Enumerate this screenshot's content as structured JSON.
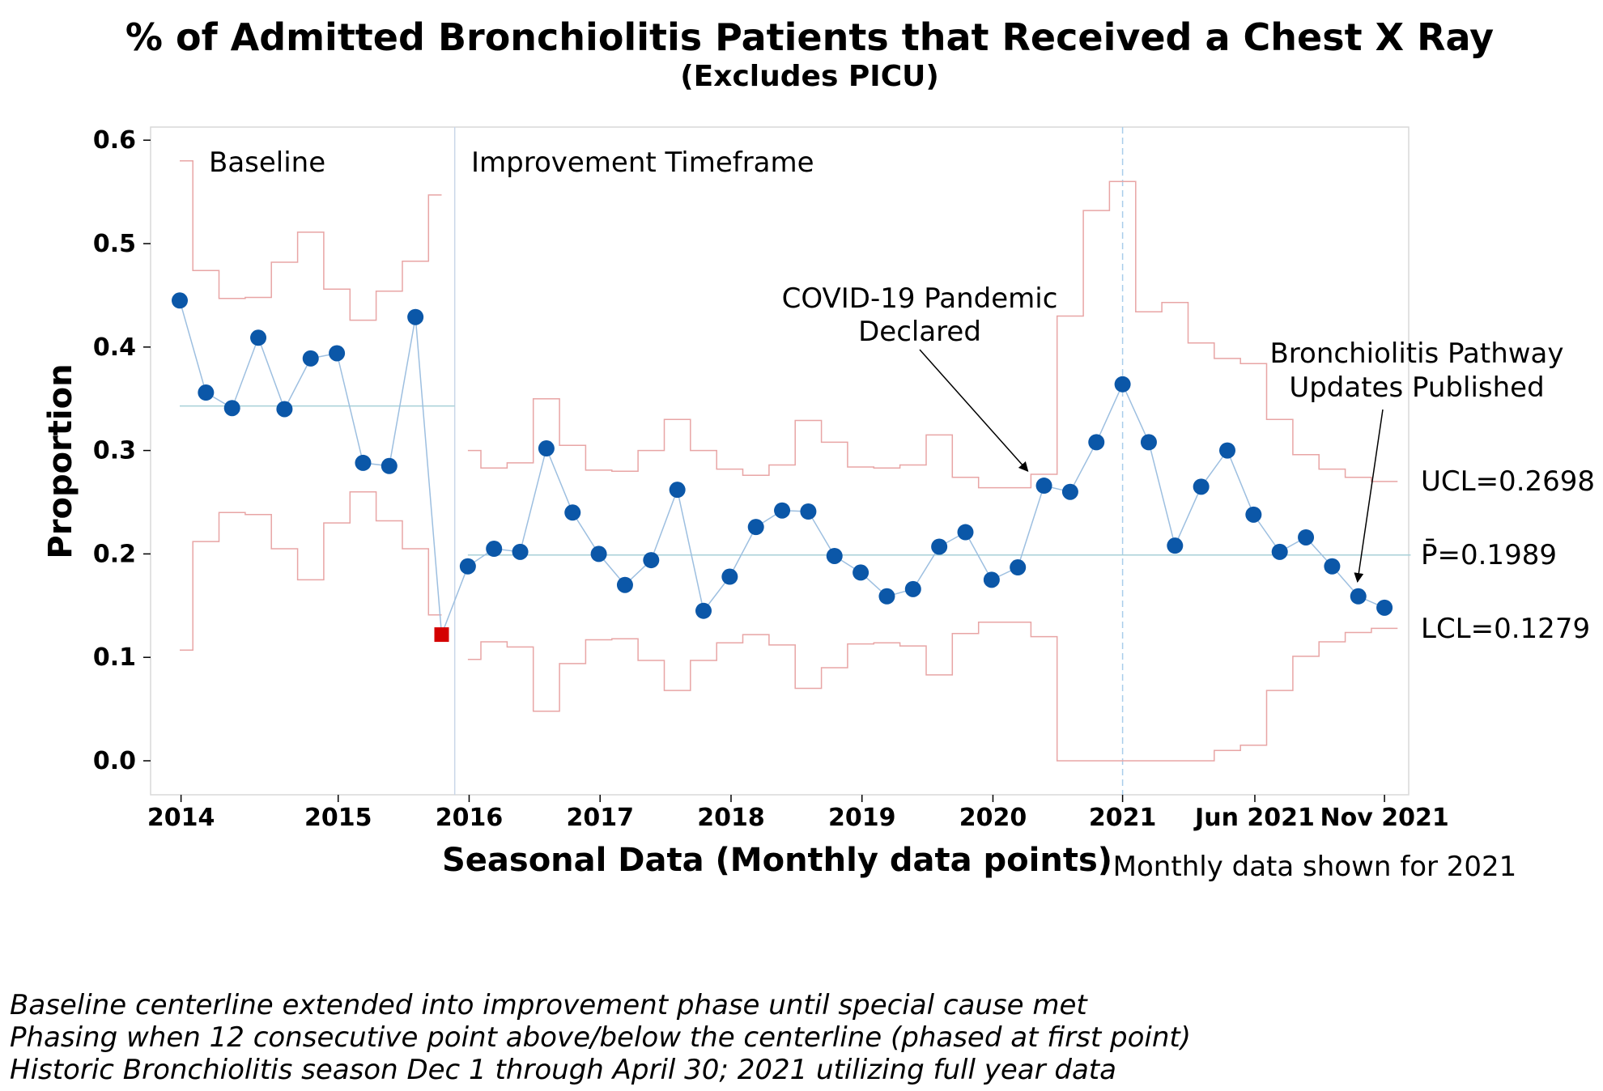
{
  "chart_data": {
    "type": "line",
    "title": "% of Admitted Bronchiolitis Patients that Received a Chest X Ray",
    "subtitle": "(Excludes PICU)",
    "xlabel": "Seasonal Data (Monthly data points)",
    "xlabel_note": "Monthly data shown for 2021",
    "ylabel": "Proportion",
    "ylim": [
      -0.03,
      0.615
    ],
    "yticks": [
      "0.0",
      "0.1",
      "0.2",
      "0.3",
      "0.4",
      "0.5",
      "0.6"
    ],
    "ytick_values": [
      0,
      0.1,
      0.2,
      0.3,
      0.4,
      0.5,
      0.6
    ],
    "xticks": [
      {
        "label": "2014",
        "index": 1.05
      },
      {
        "label": "2015",
        "index": 7.05
      },
      {
        "label": "2016",
        "index": 12.05
      },
      {
        "label": "2017",
        "index": 17.05
      },
      {
        "label": "2018",
        "index": 22.05
      },
      {
        "label": "2019",
        "index": 27.05
      },
      {
        "label": "2020",
        "index": 32.05
      },
      {
        "label": "2021",
        "index": 37
      },
      {
        "label": "Jun 2021",
        "index": 42.05
      },
      {
        "label": "Nov 2021",
        "index": 47
      }
    ],
    "grid": false,
    "phases": [
      {
        "label": "Baseline",
        "start": 0,
        "end": 10,
        "center": 0.343
      },
      {
        "label": "Improvement Timeframe",
        "start": 11,
        "end": 47,
        "center": 0.1989
      }
    ],
    "series": [
      {
        "values": [
          0.445,
          0.356,
          0.341,
          0.409,
          0.34,
          0.389,
          0.394,
          0.288,
          0.285,
          0.429,
          0.122,
          0.188,
          0.205,
          0.202,
          0.302,
          0.24,
          0.2,
          0.17,
          0.194,
          0.262,
          0.145,
          0.178,
          0.226,
          0.242,
          0.241,
          0.198,
          0.182,
          0.159,
          0.166,
          0.207,
          0.221,
          0.175,
          0.187,
          0.266,
          0.26,
          0.308,
          0.364,
          0.308,
          0.208,
          0.265,
          0.3,
          0.238,
          0.202,
          0.216,
          0.188,
          0.159,
          0.148
        ],
        "special_cause_index": 10,
        "ucl": [
          0.58,
          0.474,
          0.447,
          0.448,
          0.482,
          0.511,
          0.456,
          0.426,
          0.454,
          0.483,
          0.547,
          0.3,
          0.283,
          0.288,
          0.35,
          0.305,
          0.281,
          0.28,
          0.3,
          0.33,
          0.3,
          0.282,
          0.276,
          0.286,
          0.329,
          0.308,
          0.284,
          0.283,
          0.286,
          0.315,
          0.274,
          0.264,
          0.264,
          0.277,
          0.43,
          0.532,
          0.56,
          0.434,
          0.443,
          0.404,
          0.389,
          0.384,
          0.33,
          0.296,
          0.282,
          0.274,
          0.27
        ],
        "lcl": [
          0.107,
          0.212,
          0.24,
          0.238,
          0.205,
          0.175,
          0.23,
          0.26,
          0.232,
          0.205,
          0.141,
          0.098,
          0.115,
          0.11,
          0.048,
          0.094,
          0.117,
          0.118,
          0.097,
          0.068,
          0.097,
          0.114,
          0.122,
          0.112,
          0.07,
          0.09,
          0.113,
          0.114,
          0.111,
          0.083,
          0.123,
          0.134,
          0.134,
          0.12,
          0.0,
          0.0,
          0.0,
          0.0,
          0.0,
          0.0,
          0.01,
          0.015,
          0.068,
          0.101,
          0.115,
          0.124,
          0.128
        ]
      }
    ],
    "annotations": [
      {
        "text_lines": [
          "COVID-19 Pandemic",
          "Declared"
        ],
        "target_index": 33
      },
      {
        "text_lines": [
          "Bronchiolitis Pathway",
          "Updates Published"
        ],
        "target_index": 45
      }
    ],
    "limit_labels": {
      "ucl": "UCL=0.2698",
      "center": "P̄=0.1989",
      "lcl": "LCL=0.1279"
    },
    "colors": {
      "points": "#0b57a8",
      "special_cause": "#d40000",
      "connector": "#9dbfe0",
      "limits": "#e8a5a5",
      "centerline": "#a8d0d8",
      "frame": "#d9d9d9",
      "phase_divider": "#c9d6e8",
      "year_divider": "#a9cdea"
    }
  },
  "footnotes": [
    "Baseline centerline extended into improvement phase until special cause met",
    "Phasing when 12 consecutive point above/below the centerline (phased at first point)",
    "Historic Bronchiolitis season Dec 1 through April 30; 2021 utilizing full year data"
  ]
}
